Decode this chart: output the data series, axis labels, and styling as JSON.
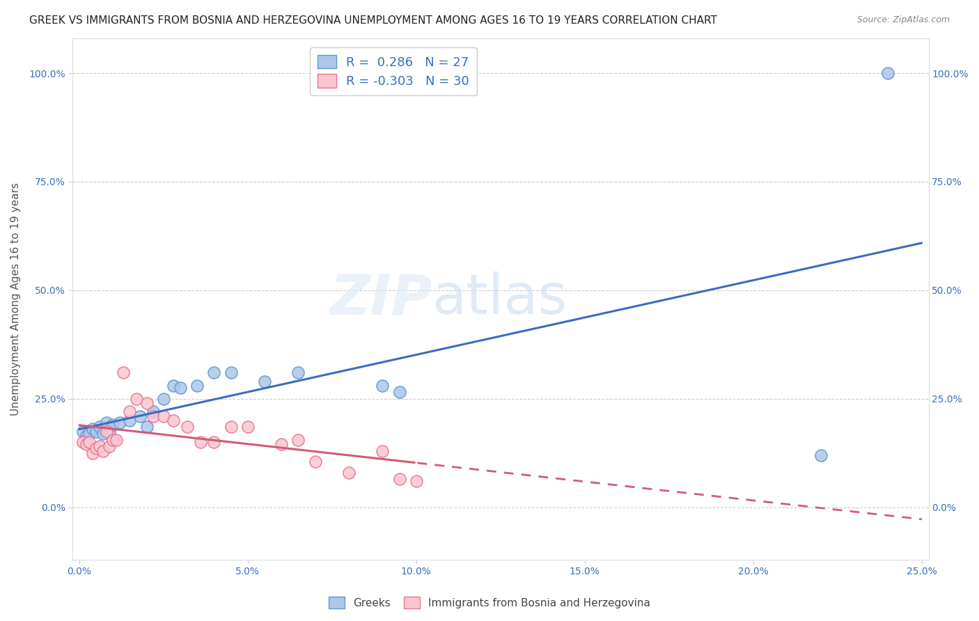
{
  "title": "GREEK VS IMMIGRANTS FROM BOSNIA AND HERZEGOVINA UNEMPLOYMENT AMONG AGES 16 TO 19 YEARS CORRELATION CHART",
  "source": "Source: ZipAtlas.com",
  "ylabel": "Unemployment Among Ages 16 to 19 years",
  "xlim": [
    -0.002,
    0.252
  ],
  "ylim": [
    -0.12,
    1.08
  ],
  "ytick_vals": [
    0.0,
    0.25,
    0.5,
    0.75,
    1.0
  ],
  "xtick_vals": [
    0.0,
    0.05,
    0.1,
    0.15,
    0.2,
    0.25
  ],
  "greeks_x": [
    0.001,
    0.002,
    0.003,
    0.004,
    0.005,
    0.006,
    0.007,
    0.008,
    0.009,
    0.01,
    0.012,
    0.015,
    0.018,
    0.02,
    0.022,
    0.025,
    0.028,
    0.03,
    0.035,
    0.04,
    0.045,
    0.055,
    0.065,
    0.09,
    0.095,
    0.22,
    0.24
  ],
  "greeks_y": [
    0.175,
    0.165,
    0.17,
    0.18,
    0.175,
    0.185,
    0.17,
    0.195,
    0.175,
    0.19,
    0.195,
    0.2,
    0.21,
    0.185,
    0.22,
    0.25,
    0.28,
    0.275,
    0.28,
    0.31,
    0.31,
    0.29,
    0.31,
    0.28,
    0.265,
    0.12,
    1.0
  ],
  "bosnian_x": [
    0.001,
    0.002,
    0.003,
    0.004,
    0.005,
    0.006,
    0.007,
    0.008,
    0.009,
    0.01,
    0.011,
    0.013,
    0.015,
    0.017,
    0.02,
    0.022,
    0.025,
    0.028,
    0.032,
    0.036,
    0.04,
    0.045,
    0.05,
    0.06,
    0.065,
    0.07,
    0.08,
    0.09,
    0.095,
    0.1
  ],
  "bosnian_y": [
    0.15,
    0.145,
    0.15,
    0.125,
    0.135,
    0.14,
    0.13,
    0.175,
    0.14,
    0.155,
    0.155,
    0.31,
    0.22,
    0.25,
    0.24,
    0.21,
    0.21,
    0.2,
    0.185,
    0.15,
    0.15,
    0.185,
    0.185,
    0.145,
    0.155,
    0.105,
    0.08,
    0.13,
    0.065,
    0.06
  ],
  "blue_scatter_color": "#aec6e8",
  "blue_edge_color": "#5b9bd5",
  "pink_scatter_color": "#f9c6d0",
  "pink_edge_color": "#e87590",
  "blue_line_color": "#3a6dbf",
  "pink_line_color": "#d45a75",
  "title_fontsize": 11,
  "tick_fontsize": 10,
  "ylabel_fontsize": 11,
  "legend_fontsize": 13,
  "source_fontsize": 9
}
